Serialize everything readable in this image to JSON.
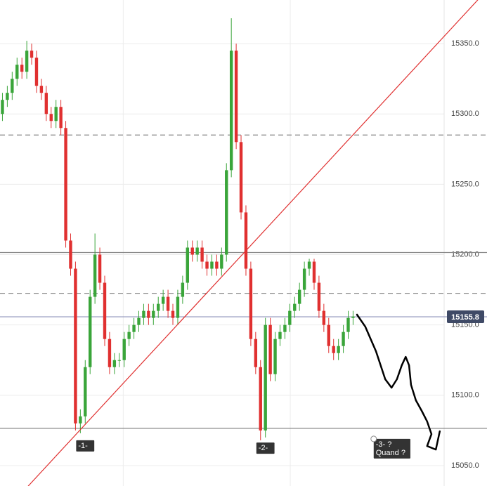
{
  "chart_data": {
    "type": "candlestick",
    "ylim": [
      15035.5,
      15381
    ],
    "xlim": [
      0,
      100
    ],
    "yticks": [
      {
        "value": 15350,
        "label": "15350.0"
      },
      {
        "value": 15300,
        "label": "15300.0"
      },
      {
        "value": 15250,
        "label": "15250.0"
      },
      {
        "value": 15200,
        "label": "15200.0"
      },
      {
        "value": 15150,
        "label": "15150.0"
      },
      {
        "value": 15100,
        "label": "15100.0"
      },
      {
        "value": 15050,
        "label": "15050.0"
      }
    ],
    "xgrid": [
      25.3,
      59.6
    ],
    "grid": true,
    "up_color": "#3aa53a",
    "down_color": "#e03030",
    "open": [
      15300,
      15310,
      15315,
      15325,
      15335,
      15330,
      15345,
      15340,
      15320,
      15315,
      15300,
      15295,
      15305,
      15290,
      15210,
      15190,
      15080,
      15085,
      15120,
      15170,
      15200,
      15180,
      15140,
      15120,
      15125,
      15125,
      15140,
      15145,
      15150,
      15155,
      15160,
      15155,
      15160,
      15165,
      15170,
      15160,
      15155,
      15170,
      15180,
      15205,
      15200,
      15205,
      15195,
      15190,
      15195,
      15190,
      15200,
      15260,
      15345,
      15280,
      15230,
      15190,
      15140,
      15120,
      15075,
      15150,
      15115,
      15140,
      15145,
      15150,
      15160,
      15165,
      15175,
      15190,
      15195,
      15180,
      15160,
      15150,
      15135,
      15130,
      15135,
      15145,
      15155
    ],
    "high": [
      15315,
      15320,
      15330,
      15340,
      15340,
      15352,
      15350,
      15345,
      15325,
      15320,
      15305,
      15310,
      15310,
      15295,
      15215,
      15195,
      15090,
      15125,
      15175,
      15215,
      15205,
      15185,
      15145,
      15130,
      15130,
      15145,
      15150,
      15155,
      15160,
      15165,
      15165,
      15165,
      15170,
      15175,
      15175,
      15165,
      15175,
      15185,
      15210,
      15210,
      15210,
      15210,
      15200,
      15200,
      15200,
      15205,
      15265,
      15368,
      15350,
      15285,
      15235,
      15195,
      15145,
      15125,
      15155,
      15155,
      15145,
      15150,
      15155,
      15165,
      15170,
      15180,
      15195,
      15197,
      15197,
      15185,
      15165,
      15155,
      15140,
      15140,
      15150,
      15160,
      15160
    ],
    "low": [
      15295,
      15305,
      15310,
      15320,
      15325,
      15325,
      15335,
      15315,
      15310,
      15295,
      15290,
      15290,
      15285,
      15205,
      15185,
      15075,
      15073,
      15080,
      15115,
      15165,
      15175,
      15135,
      15115,
      15115,
      15120,
      15120,
      15135,
      15140,
      15145,
      15150,
      15150,
      15150,
      15155,
      15160,
      15155,
      15150,
      15150,
      15165,
      15175,
      15195,
      15195,
      15190,
      15185,
      15185,
      15185,
      15185,
      15195,
      15255,
      15275,
      15225,
      15185,
      15135,
      15115,
      15068,
      15070,
      15110,
      15110,
      15135,
      15140,
      15145,
      15155,
      15160,
      15170,
      15185,
      15175,
      15155,
      15145,
      15130,
      15125,
      15125,
      15130,
      15140,
      15150
    ],
    "close": [
      15310,
      15315,
      15325,
      15335,
      15330,
      15345,
      15340,
      15320,
      15315,
      15300,
      15295,
      15305,
      15290,
      15210,
      15190,
      15080,
      15085,
      15120,
      15170,
      15200,
      15180,
      15140,
      15120,
      15125,
      15125,
      15140,
      15145,
      15150,
      15155,
      15160,
      15155,
      15160,
      15165,
      15170,
      15160,
      15155,
      15170,
      15180,
      15205,
      15200,
      15205,
      15195,
      15190,
      15195,
      15190,
      15200,
      15260,
      15345,
      15280,
      15230,
      15190,
      15140,
      15120,
      15075,
      15150,
      15115,
      15140,
      15145,
      15150,
      15160,
      15165,
      15175,
      15190,
      15195,
      15180,
      15160,
      15150,
      15135,
      15130,
      15135,
      15145,
      15155,
      15156
    ],
    "hlines": [
      {
        "value": 15285,
        "style": "dashed",
        "color": "#888888"
      },
      {
        "value": 15201.5,
        "style": "solid",
        "color": "#888888"
      },
      {
        "value": 15172.5,
        "style": "dashed",
        "color": "#888888"
      },
      {
        "value": 15155.8,
        "style": "solid",
        "color": "#8a8fb8"
      },
      {
        "value": 15076.5,
        "style": "solid",
        "color": "#888888"
      }
    ],
    "price_label": 15155.8,
    "trendline": {
      "x": [
        5.8,
        98.1
      ],
      "values": [
        15035.5,
        15381
      ],
      "color": "#e03030"
    },
    "forecast": {
      "x": [
        73.3,
        75.0,
        77.2,
        79.1,
        80.4,
        81.5,
        82.5,
        83.3,
        84.0,
        84.4,
        85.4,
        86.6,
        87.7,
        88.6,
        87.7,
        89.5,
        90.3
      ],
      "values": [
        15157.3,
        15148.8,
        15131.3,
        15111.4,
        15105.4,
        15111.4,
        15121.3,
        15127.3,
        15121.3,
        15107.4,
        15096.4,
        15088.9,
        15081.4,
        15072.4,
        15063.9,
        15061.4,
        15074.4
      ],
      "color": "#000000"
    },
    "annotations": [
      {
        "lines": [
          "-1-"
        ],
        "x": 17.5,
        "y": 15064
      },
      {
        "lines": [
          "-2-"
        ],
        "x": 54.5,
        "y": 15062.4
      },
      {
        "lines": [
          "-3- ?",
          "Quand ?"
        ],
        "x": 80.5,
        "y": 15062
      }
    ]
  }
}
